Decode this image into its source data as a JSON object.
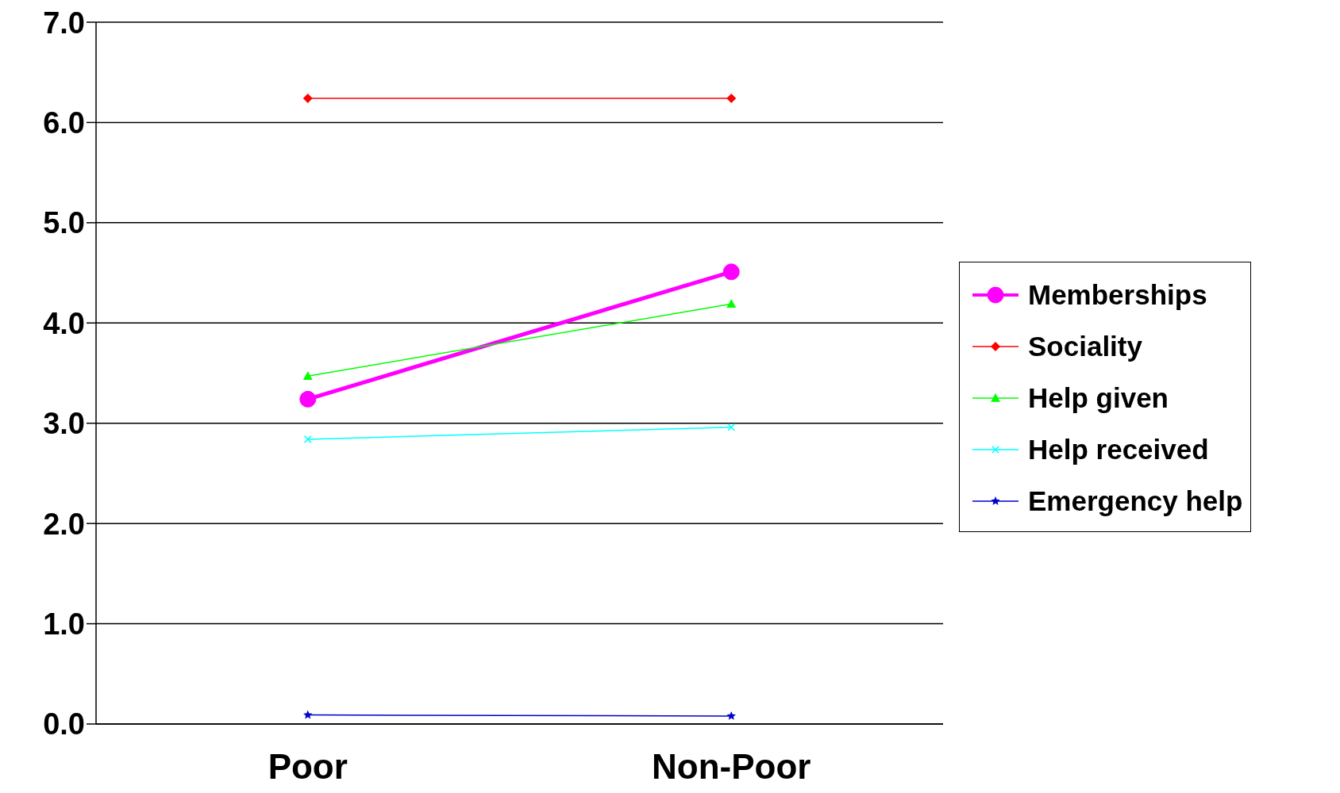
{
  "chart_data": {
    "type": "line",
    "categories": [
      "Poor",
      "Non-Poor"
    ],
    "series": [
      {
        "name": "Memberships",
        "color": "#ff00ff",
        "marker": "circle",
        "values": [
          3.24,
          4.51
        ]
      },
      {
        "name": "Sociality",
        "color": "#ff0000",
        "marker": "diamond",
        "values": [
          6.24,
          6.24
        ]
      },
      {
        "name": "Help given",
        "color": "#00ff00",
        "marker": "triangle",
        "values": [
          3.47,
          4.19
        ]
      },
      {
        "name": "Help received",
        "color": "#00ffff",
        "marker": "cross",
        "values": [
          2.84,
          2.96
        ]
      },
      {
        "name": "Emergency help",
        "color": "#0000cc",
        "marker": "star",
        "values": [
          0.09,
          0.08
        ]
      }
    ],
    "ylim": [
      0,
      7
    ],
    "yticks": [
      {
        "value": 0,
        "label": "0.0"
      },
      {
        "value": 1,
        "label": "1.0"
      },
      {
        "value": 2,
        "label": "2.0"
      },
      {
        "value": 3,
        "label": "3.0"
      },
      {
        "value": 4,
        "label": "4.0"
      },
      {
        "value": 5,
        "label": "5.0"
      },
      {
        "value": 6,
        "label": "6.0"
      },
      {
        "value": 7,
        "label": "7.0"
      }
    ],
    "grid": "y",
    "legend": "right",
    "line_style": "solid"
  }
}
